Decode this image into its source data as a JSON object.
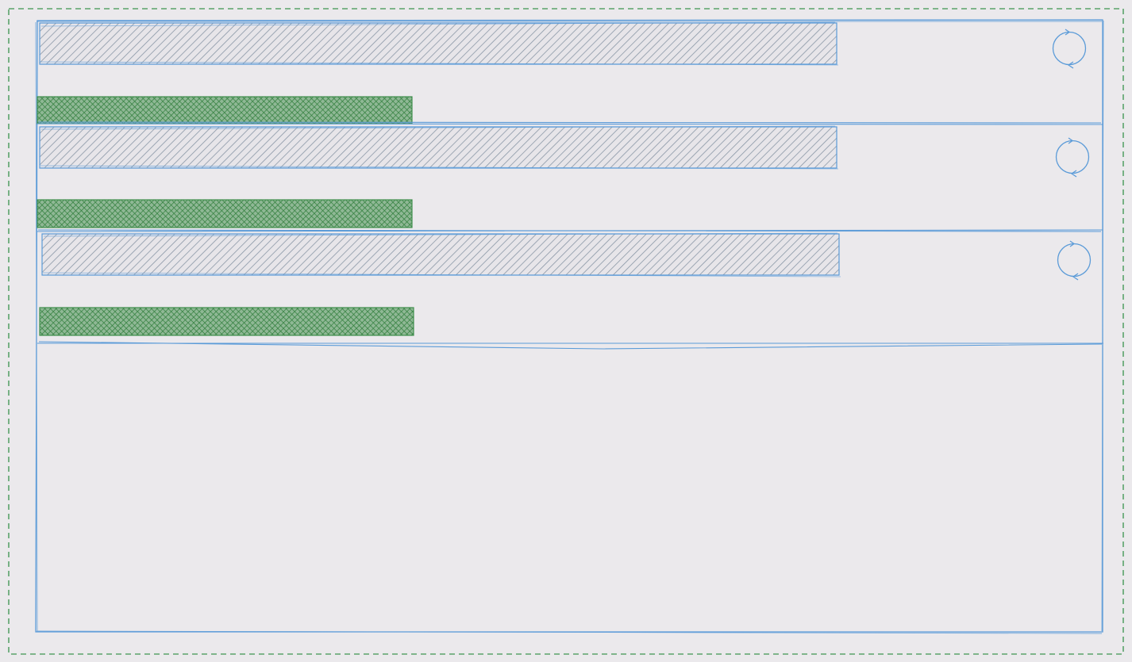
{
  "wireframe": {
    "style": "hand-drawn sketch",
    "colors": {
      "background": "#ebe9ec",
      "outer_border": "#5aa36a",
      "panel_stroke": "#5b9bd8",
      "placeholder_fill": "#8c9aa8",
      "bar_fill": "#2f7d3b"
    },
    "list_items": [
      {
        "refresh_icon": "refresh-icon"
      },
      {
        "refresh_icon": "refresh-icon"
      },
      {
        "refresh_icon": "refresh-icon"
      }
    ]
  }
}
